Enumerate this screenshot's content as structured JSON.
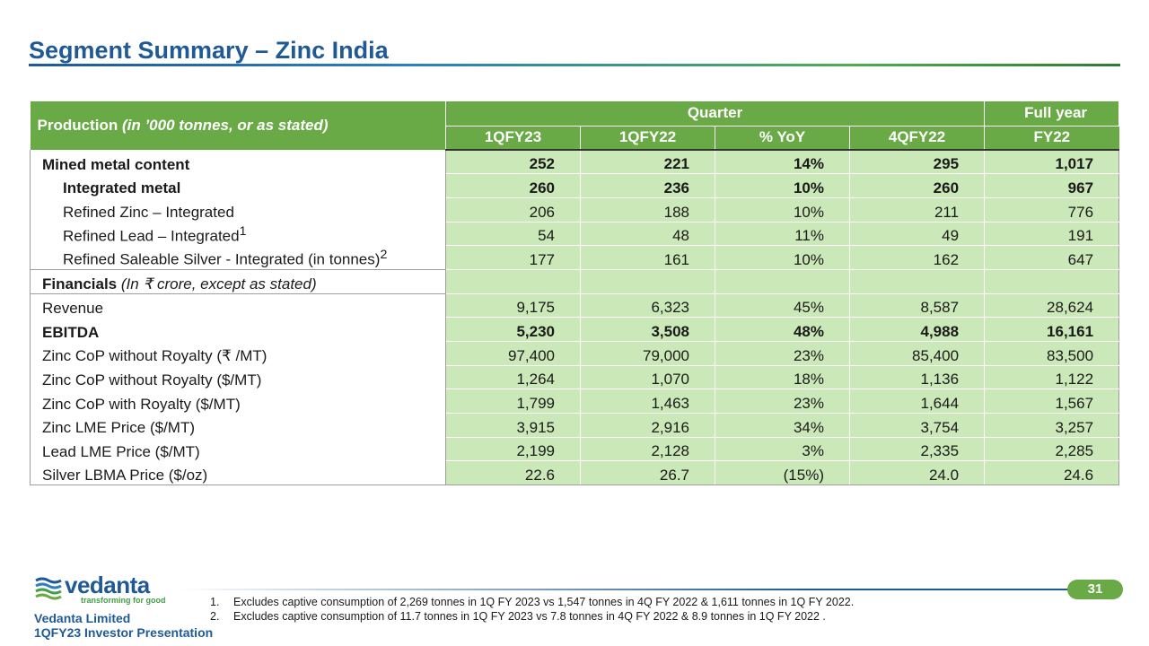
{
  "title": "Segment Summary – Zinc India",
  "table": {
    "header_label": "Production",
    "header_unit": "(in ’000 tonnes, or as stated)",
    "group_quarter": "Quarter",
    "group_full_year": "Full year",
    "columns": [
      "1QFY23",
      "1QFY22",
      "% YoY",
      "4QFY22",
      "FY22"
    ],
    "rows": [
      {
        "label": "Mined metal content",
        "values": [
          "252",
          "221",
          "14%",
          "295",
          "1,017"
        ]
      },
      {
        "label": "Integrated metal",
        "values": [
          "260",
          "236",
          "10%",
          "260",
          "967"
        ]
      },
      {
        "label": "Refined Zinc – Integrated",
        "values": [
          "206",
          "188",
          "10%",
          "211",
          "776"
        ]
      },
      {
        "label": "Refined Lead – Integrated",
        "sup": "1",
        "values": [
          "54",
          "48",
          "11%",
          "49",
          "191"
        ]
      },
      {
        "label": "Refined Saleable Silver - Integrated (in tonnes)",
        "sup": "2",
        "values": [
          "177",
          "161",
          "10%",
          "162",
          "647"
        ]
      },
      {
        "label": "Financials",
        "label_suffix": "(In ₹  crore, except as stated)"
      },
      {
        "label": "Revenue",
        "values": [
          "9,175",
          "6,323",
          "45%",
          "8,587",
          "28,624"
        ]
      },
      {
        "label": "EBITDA",
        "values": [
          "5,230",
          "3,508",
          "48%",
          "4,988",
          "16,161"
        ]
      },
      {
        "label": "Zinc CoP without Royalty (₹ /MT)",
        "values": [
          "97,400",
          "79,000",
          "23%",
          "85,400",
          "83,500"
        ]
      },
      {
        "label": "Zinc CoP without Royalty ($/MT)",
        "values": [
          "1,264",
          "1,070",
          "18%",
          "1,136",
          "1,122"
        ]
      },
      {
        "label": "Zinc CoP with Royalty ($/MT)",
        "values": [
          "1,799",
          "1,463",
          "23%",
          "1,644",
          "1,567"
        ]
      },
      {
        "label": "Zinc LME Price ($/MT)",
        "values": [
          "3,915",
          "2,916",
          "34%",
          "3,754",
          "3,257"
        ]
      },
      {
        "label": "Lead LME Price ($/MT)",
        "values": [
          "2,199",
          "2,128",
          "3%",
          "2,335",
          "2,285"
        ]
      },
      {
        "label": "Silver LBMA Price ($/oz)",
        "values": [
          "22.6",
          "26.7",
          "(15%)",
          "24.0",
          "24.6"
        ]
      }
    ]
  },
  "footer": {
    "logo_word": "vedanta",
    "logo_tagline": "transforming for good",
    "company": "Vedanta Limited",
    "presentation": "1QFY23 Investor Presentation",
    "page_number": "31",
    "notes": [
      {
        "num": "1.",
        "text": "Excludes captive consumption of 2,269 tonnes in 1Q FY 2023 vs 1,547 tonnes in 4Q FY 2022 & 1,611 tonnes in 1Q FY 2022."
      },
      {
        "num": "2.",
        "text": "Excludes captive consumption of 11.7 tonnes in 1Q FY 2023 vs 7.8 tonnes in 4Q FY 2022 & 8.9 tonnes in 1Q FY 2022 ."
      }
    ]
  },
  "colors": {
    "title_blue": "#1f5a96",
    "header_green": "#6aaa46",
    "cell_green": "#cbe8b8"
  }
}
